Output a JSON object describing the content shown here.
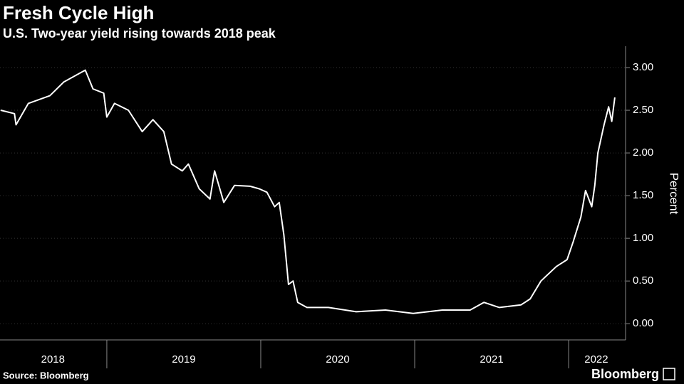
{
  "chart_data": {
    "type": "line",
    "title": "Fresh Cycle High",
    "subtitle": "U.S. Two-year yield rising towards 2018 peak",
    "y_label": "Percent",
    "source": "Source: Bloomberg",
    "brand": "Bloomberg",
    "x": [
      2018.31,
      2018.4,
      2018.41,
      2018.49,
      2018.63,
      2018.72,
      2018.86,
      2018.91,
      2018.98,
      2019.0,
      2019.05,
      2019.14,
      2019.23,
      2019.3,
      2019.37,
      2019.42,
      2019.49,
      2019.53,
      2019.6,
      2019.67,
      2019.7,
      2019.76,
      2019.83,
      2019.93,
      2019.99,
      2020.04,
      2020.09,
      2020.12,
      2020.15,
      2020.18,
      2020.21,
      2020.24,
      2020.3,
      2020.44,
      2020.62,
      2020.81,
      2020.99,
      2021.18,
      2021.36,
      2021.45,
      2021.55,
      2021.69,
      2021.75,
      2021.82,
      2021.92,
      2021.99,
      2022.03,
      2022.08,
      2022.11,
      2022.15,
      2022.17,
      2022.19,
      2022.23,
      2022.26,
      2022.28,
      2022.3
    ],
    "series": [
      {
        "name": "U.S. Two-year yield",
        "color": "#ffffff",
        "values": [
          2.5,
          2.46,
          2.33,
          2.58,
          2.67,
          2.83,
          2.97,
          2.75,
          2.7,
          2.42,
          2.58,
          2.5,
          2.25,
          2.39,
          2.25,
          1.87,
          1.79,
          1.87,
          1.58,
          1.46,
          1.79,
          1.42,
          1.62,
          1.61,
          1.58,
          1.54,
          1.37,
          1.42,
          1.04,
          0.46,
          0.5,
          0.25,
          0.19,
          0.19,
          0.14,
          0.16,
          0.12,
          0.16,
          0.16,
          0.25,
          0.19,
          0.22,
          0.29,
          0.5,
          0.67,
          0.75,
          0.96,
          1.25,
          1.56,
          1.37,
          1.62,
          2.0,
          2.33,
          2.54,
          2.37,
          2.65
        ]
      }
    ],
    "xlim": [
      2018.306,
      2022.37
    ],
    "ylim": [
      -0.19,
      3.25
    ],
    "yticks": [
      {
        "value": 0,
        "label": "0.00"
      },
      {
        "value": 0.5,
        "label": "0.50"
      },
      {
        "value": 1,
        "label": "1.00"
      },
      {
        "value": 1.5,
        "label": "1.50"
      },
      {
        "value": 2,
        "label": "2.00"
      },
      {
        "value": 2.5,
        "label": "2.50"
      },
      {
        "value": 3,
        "label": "3.00"
      }
    ],
    "xticks": [
      {
        "value": 2018.65,
        "label": "2018"
      },
      {
        "value": 2019.5,
        "label": "2019"
      },
      {
        "value": 2020.5,
        "label": "2020"
      },
      {
        "value": 2021.5,
        "label": "2021"
      },
      {
        "value": 2022.18,
        "label": "2022"
      }
    ],
    "x_separators": [
      2019,
      2020,
      2021,
      2022
    ]
  }
}
